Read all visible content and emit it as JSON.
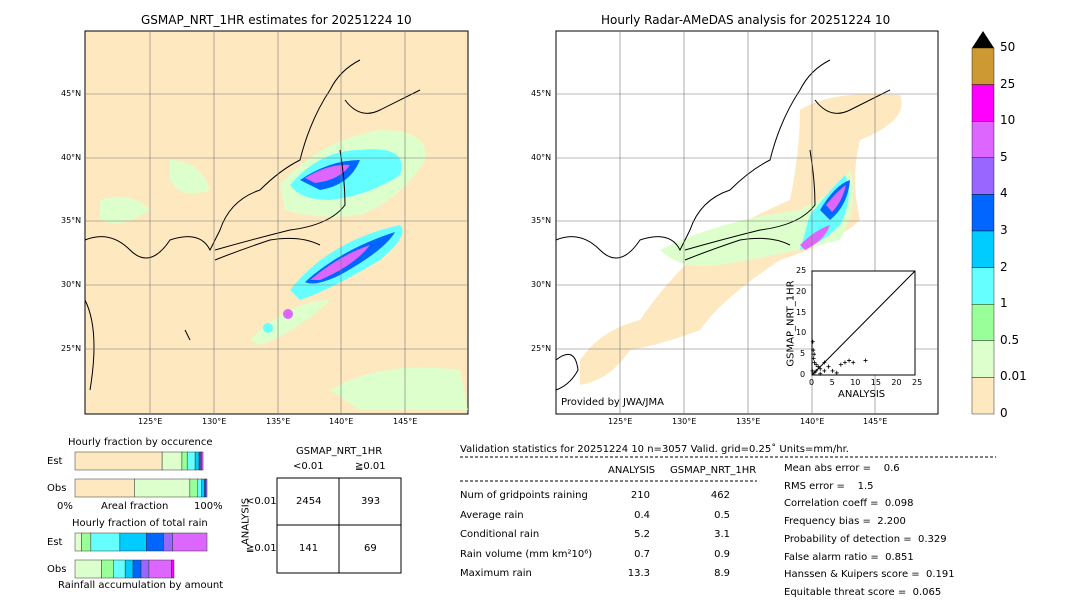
{
  "left_map": {
    "title": "GSMAP_NRT_1HR estimates for 20251224 10"
  },
  "right_map": {
    "title": "Hourly Radar-AMeDAS analysis for 20251224 10",
    "credit": "Provided by JWA/JMA"
  },
  "lat_labels": [
    "45°N",
    "40°N",
    "35°N",
    "30°N",
    "25°N"
  ],
  "lon_labels": [
    "125°E",
    "130°E",
    "135°E",
    "140°E",
    "145°E"
  ],
  "colors": {
    "bg": "#fee8c0",
    "land_line": "#000000"
  },
  "chart_data": [
    {
      "type": "colorbar",
      "labels": [
        "50",
        "25",
        "10",
        "5",
        "4",
        "3",
        "2",
        "1",
        "0.5",
        "0.01",
        "0"
      ],
      "colors": [
        "#cc9933",
        "#ff00ff",
        "#dd66ff",
        "#9966ff",
        "#0066ff",
        "#00ccff",
        "#66ffff",
        "#99ff99",
        "#ddffcc",
        "#fee8c0"
      ]
    },
    {
      "type": "scatter",
      "title": "",
      "xlabel": "ANALYSIS",
      "ylabel": "GSMAP_NRT_1HR",
      "xlim": [
        0,
        25
      ],
      "ylim": [
        0,
        25
      ],
      "ticks": [
        "0",
        "5",
        "10",
        "15",
        "20",
        "25"
      ],
      "points": [
        [
          0.2,
          8
        ],
        [
          0.3,
          6
        ],
        [
          0.5,
          5
        ],
        [
          0.4,
          4
        ],
        [
          0.6,
          3
        ],
        [
          1,
          2.5
        ],
        [
          1.5,
          2
        ],
        [
          2,
          1.5
        ],
        [
          3,
          1
        ],
        [
          4,
          2
        ],
        [
          5,
          1
        ],
        [
          6,
          0.5
        ],
        [
          7,
          2.5
        ],
        [
          8,
          3
        ],
        [
          9,
          3.5
        ],
        [
          10,
          3
        ],
        [
          13,
          3.5
        ],
        [
          0.1,
          1
        ],
        [
          0.5,
          0.5
        ],
        [
          1,
          1
        ],
        [
          2,
          0.3
        ],
        [
          3,
          3
        ]
      ]
    },
    {
      "type": "bar",
      "title": "Hourly fraction by occurence",
      "xlabel": "Areal fraction",
      "x_min_label": "0%",
      "x_max_label": "100%",
      "series": [
        {
          "name": "Est",
          "values": [
            66,
            15,
            4,
            6,
            3,
            1,
            1,
            1
          ]
        },
        {
          "name": "Obs",
          "values": [
            45,
            42,
            6,
            3,
            2,
            1,
            1
          ]
        }
      ]
    },
    {
      "type": "bar",
      "title": "Hourly fraction of total rain",
      "xlabel": "Rainfall accumulation by amount",
      "series": [
        {
          "name": "Est",
          "values": [
            5,
            7,
            22,
            20,
            13,
            7,
            26
          ]
        },
        {
          "name": "Obs",
          "values": [
            20,
            9,
            9,
            6,
            6,
            6,
            17,
            2
          ]
        }
      ]
    }
  ],
  "contingency": {
    "title": "GSMAP_NRT_1HR",
    "col_labels": [
      "<0.01",
      "≧0.01"
    ],
    "row_title": "ANALYSIS",
    "row_labels": [
      "<0.01",
      "≧0.01"
    ],
    "cells": [
      [
        "2454",
        "393"
      ],
      [
        "141",
        "69"
      ]
    ]
  },
  "stats": {
    "header": "Validation statistics for 20251224 10  n=3057 Valid. grid=0.25˚ Units=mm/hr.",
    "col_headers": [
      "ANALYSIS",
      "GSMAP_NRT_1HR"
    ],
    "rows": [
      [
        "Num of gridpoints raining",
        "210",
        "462"
      ],
      [
        "Average rain",
        "0.4",
        "0.5"
      ],
      [
        "Conditional rain",
        "5.2",
        "3.1"
      ],
      [
        "Rain volume (mm km²10⁶)",
        "0.7",
        "0.9"
      ],
      [
        "Maximum rain",
        "13.3",
        "8.9"
      ]
    ],
    "scores": [
      "Mean abs error =    0.6",
      "RMS error =    1.5",
      "Correlation coeff =  0.098",
      "Frequency bias =  2.200",
      "Probability of detection =  0.329",
      "False alarm ratio =  0.851",
      "Hanssen & Kuipers score =  0.191",
      "Equitable threat score =  0.065"
    ]
  },
  "row_labels": {
    "est": "Est",
    "obs": "Obs"
  }
}
